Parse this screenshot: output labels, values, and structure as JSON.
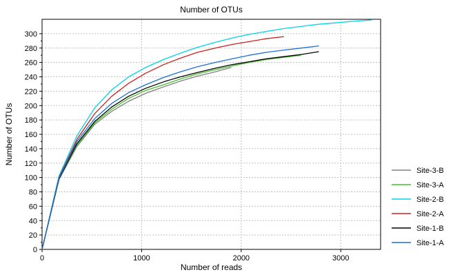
{
  "chart_data": {
    "type": "line",
    "title": "Number of OTUs",
    "xlabel": "Number of reads",
    "ylabel": "Number of OTUs",
    "xlim": [
      0,
      3400
    ],
    "ylim": [
      0,
      320
    ],
    "x_ticks": [
      0,
      1000,
      2000,
      3000
    ],
    "y_ticks": [
      0,
      10,
      20,
      30,
      40,
      50,
      60,
      70,
      80,
      90,
      100,
      110,
      120,
      130,
      140,
      150,
      160,
      170,
      180,
      190,
      200,
      210,
      220,
      230,
      240,
      250,
      260,
      270,
      280,
      290,
      300
    ],
    "y_tick_labels": [
      "0",
      "",
      "20",
      "",
      "40",
      "",
      "60",
      "",
      "80",
      "",
      "100",
      "",
      "120",
      "",
      "140",
      "",
      "160",
      "",
      "180",
      "",
      "200",
      "",
      "220",
      "",
      "240",
      "",
      "260",
      "",
      "280",
      "",
      "300"
    ],
    "grid": true,
    "legend_position": "bottom-right",
    "series": [
      {
        "name": "Site-3-B",
        "color": "#808080",
        "points": [
          [
            0,
            0
          ],
          [
            170,
            97
          ],
          [
            350,
            143
          ],
          [
            530,
            174
          ],
          [
            700,
            192
          ],
          [
            870,
            206
          ],
          [
            1040,
            217
          ],
          [
            1220,
            226
          ],
          [
            1390,
            234
          ],
          [
            1560,
            241
          ],
          [
            1740,
            247
          ],
          [
            1900,
            253
          ]
        ]
      },
      {
        "name": "Site-3-A",
        "color": "#44c02a",
        "points": [
          [
            0,
            0
          ],
          [
            170,
            98
          ],
          [
            350,
            145
          ],
          [
            530,
            176
          ],
          [
            700,
            195
          ],
          [
            870,
            210
          ],
          [
            1040,
            221
          ],
          [
            1220,
            229
          ],
          [
            1390,
            237
          ],
          [
            1560,
            244
          ],
          [
            1740,
            250
          ],
          [
            1910,
            255
          ],
          [
            2080,
            260
          ],
          [
            2250,
            264
          ],
          [
            2420,
            267
          ],
          [
            2600,
            270
          ]
        ]
      },
      {
        "name": "Site-2-B",
        "color": "#00d4e8",
        "points": [
          [
            0,
            0
          ],
          [
            170,
            102
          ],
          [
            350,
            158
          ],
          [
            530,
            197
          ],
          [
            700,
            222
          ],
          [
            870,
            240
          ],
          [
            1040,
            253
          ],
          [
            1220,
            264
          ],
          [
            1390,
            273
          ],
          [
            1560,
            281
          ],
          [
            1740,
            288
          ],
          [
            1910,
            294
          ],
          [
            2080,
            299
          ],
          [
            2250,
            303
          ],
          [
            2420,
            307
          ],
          [
            2600,
            310
          ],
          [
            2770,
            313
          ],
          [
            2940,
            315
          ],
          [
            3110,
            317
          ],
          [
            3310,
            319
          ]
        ]
      },
      {
        "name": "Site-2-A",
        "color": "#c8201e",
        "points": [
          [
            0,
            0
          ],
          [
            170,
            100
          ],
          [
            350,
            153
          ],
          [
            530,
            189
          ],
          [
            700,
            213
          ],
          [
            870,
            231
          ],
          [
            1040,
            245
          ],
          [
            1220,
            257
          ],
          [
            1390,
            266
          ],
          [
            1560,
            274
          ],
          [
            1740,
            280
          ],
          [
            1910,
            285
          ],
          [
            2080,
            289
          ],
          [
            2250,
            293
          ],
          [
            2430,
            296
          ]
        ]
      },
      {
        "name": "Site-1-B",
        "color": "#000000",
        "points": [
          [
            0,
            0
          ],
          [
            170,
            98
          ],
          [
            350,
            147
          ],
          [
            530,
            178
          ],
          [
            700,
            198
          ],
          [
            870,
            213
          ],
          [
            1040,
            224
          ],
          [
            1220,
            233
          ],
          [
            1390,
            240
          ],
          [
            1560,
            246
          ],
          [
            1740,
            252
          ],
          [
            1910,
            257
          ],
          [
            2080,
            261
          ],
          [
            2250,
            265
          ],
          [
            2420,
            268
          ],
          [
            2600,
            271
          ],
          [
            2780,
            275
          ]
        ]
      },
      {
        "name": "Site-1-A",
        "color": "#1a6fd8",
        "points": [
          [
            0,
            0
          ],
          [
            170,
            99
          ],
          [
            350,
            150
          ],
          [
            530,
            182
          ],
          [
            700,
            203
          ],
          [
            870,
            218
          ],
          [
            1040,
            229
          ],
          [
            1220,
            239
          ],
          [
            1390,
            247
          ],
          [
            1560,
            254
          ],
          [
            1740,
            260
          ],
          [
            1910,
            265
          ],
          [
            2080,
            270
          ],
          [
            2250,
            274
          ],
          [
            2420,
            277
          ],
          [
            2600,
            280
          ],
          [
            2780,
            283
          ]
        ]
      }
    ]
  }
}
